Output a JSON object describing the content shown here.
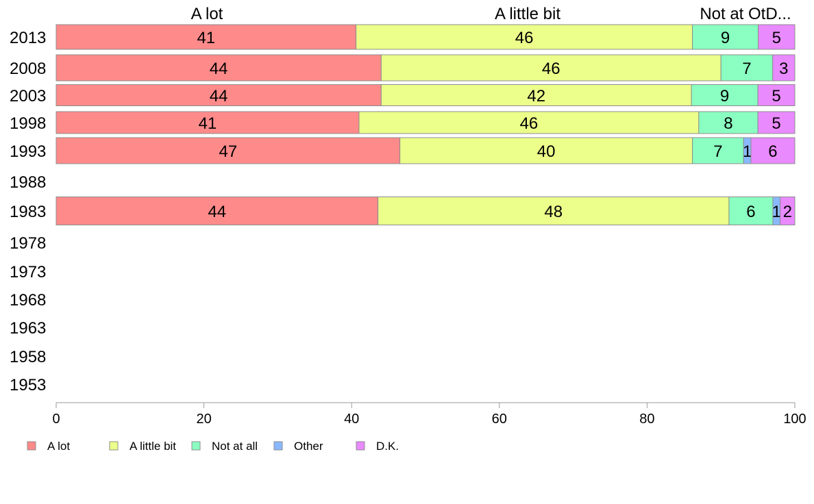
{
  "chart_data": {
    "type": "bar",
    "orientation": "horizontal",
    "stacked": true,
    "header_labels": [
      "A lot",
      "A little bit",
      "Not at OtD..."
    ],
    "categories": [
      "2013",
      "2008",
      "2003",
      "1998",
      "1993",
      "1988",
      "1983",
      "1978",
      "1973",
      "1968",
      "1963",
      "1958",
      "1953"
    ],
    "series": [
      {
        "name": "A lot",
        "color": "#ff8a8a",
        "values": [
          41,
          44,
          44,
          41,
          47,
          null,
          44,
          null,
          null,
          null,
          null,
          null,
          null
        ]
      },
      {
        "name": "A little bit",
        "color": "#ecff8a",
        "values": [
          46,
          46,
          42,
          46,
          40,
          null,
          48,
          null,
          null,
          null,
          null,
          null,
          null
        ]
      },
      {
        "name": "Not at all",
        "color": "#8affc1",
        "values": [
          9,
          7,
          9,
          8,
          7,
          null,
          6,
          null,
          null,
          null,
          null,
          null,
          null
        ]
      },
      {
        "name": "Other",
        "color": "#8ab8ff",
        "values": [
          0,
          0,
          0,
          0,
          1,
          null,
          1,
          null,
          null,
          null,
          null,
          null,
          null
        ]
      },
      {
        "name": "D.K.",
        "color": "#e98aff",
        "values": [
          5,
          3,
          5,
          5,
          6,
          null,
          2,
          null,
          null,
          null,
          null,
          null,
          null
        ]
      }
    ],
    "xlim": [
      0,
      100
    ],
    "xticks": [
      "0",
      "20",
      "40",
      "60",
      "80",
      "100"
    ],
    "legend_position": "bottom-left",
    "grid": false
  }
}
